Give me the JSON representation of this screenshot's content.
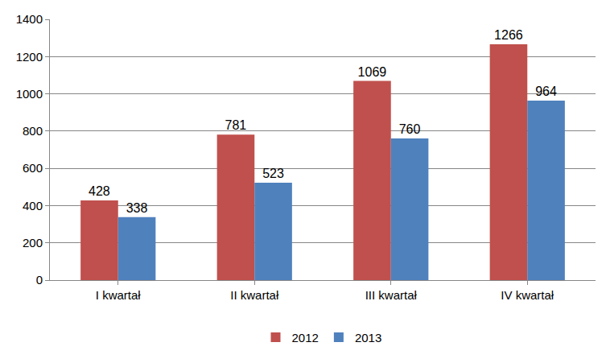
{
  "chart_data": {
    "type": "bar",
    "categories": [
      "I kwartał",
      "II kwartał",
      "III kwartał",
      "IV kwartał"
    ],
    "series": [
      {
        "name": "2012",
        "color": "#c0504d",
        "values": [
          428,
          781,
          1069,
          1266
        ]
      },
      {
        "name": "2013",
        "color": "#4f81bd",
        "values": [
          338,
          523,
          760,
          964
        ]
      }
    ],
    "ylim": [
      0,
      1400
    ],
    "yticks": [
      0,
      200,
      400,
      600,
      800,
      1000,
      1200,
      1400
    ],
    "grid": true,
    "data_labels": true,
    "legend": "bottom"
  }
}
